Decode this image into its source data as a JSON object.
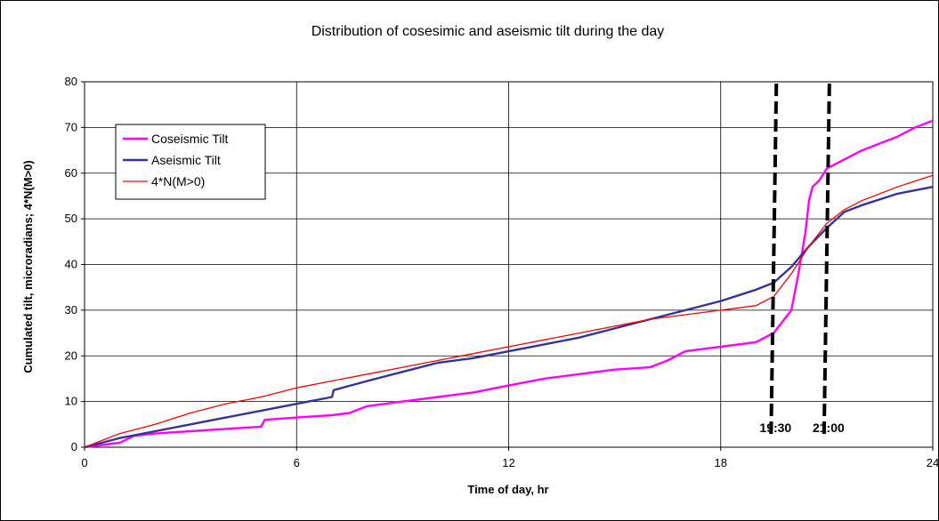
{
  "chart_data": {
    "type": "line",
    "title": "Distribution of cosesimic and aseismic tilt during the day",
    "xlabel": "Time of day, hr",
    "ylabel": "Cumulated tilt, microradians;  4*N(M>0)",
    "xlim": [
      0,
      24
    ],
    "ylim": [
      0,
      80
    ],
    "xticks": [
      "0",
      "6",
      "12",
      "18",
      "24"
    ],
    "yticks": [
      "0",
      "10",
      "20",
      "30",
      "40",
      "50",
      "60",
      "70",
      "80"
    ],
    "grid": true,
    "legend_position": "top-left",
    "series": [
      {
        "name": "Coseismic Tilt",
        "color": "#ff00ff",
        "x": [
          0,
          1,
          1.4,
          2,
          3,
          4,
          5,
          5.1,
          6,
          7,
          7.5,
          8,
          9,
          10,
          11,
          12,
          13,
          14,
          15,
          16,
          16.5,
          17,
          18,
          19,
          19.5,
          20,
          20.2,
          20.4,
          20.5,
          20.6,
          20.8,
          21,
          21.5,
          22,
          23,
          23.5,
          24
        ],
        "y": [
          0,
          1,
          2.5,
          3,
          3.5,
          4,
          4.5,
          6,
          6.5,
          7,
          7.5,
          9,
          10,
          11,
          12,
          13.5,
          15,
          16,
          17,
          17.5,
          19,
          21,
          22,
          23,
          25,
          30,
          38,
          47,
          54,
          57,
          58.5,
          61,
          63,
          65,
          68,
          70,
          71.5
        ]
      },
      {
        "name": "Aseismic Tilt",
        "color": "#333399",
        "x": [
          0,
          1,
          2,
          3,
          4,
          5,
          6,
          7,
          7.05,
          8,
          9,
          10,
          11,
          12,
          13,
          14,
          15,
          16,
          17,
          18,
          19,
          19.5,
          20,
          20.5,
          21,
          21.5,
          22,
          23,
          24
        ],
        "y": [
          0,
          2,
          3.5,
          5,
          6.5,
          8,
          9.5,
          11,
          12.5,
          14.5,
          16.5,
          18.5,
          19.5,
          21,
          22.5,
          24,
          26,
          28,
          30,
          32,
          34.5,
          36,
          39.5,
          44,
          48,
          51.5,
          53,
          55.5,
          57
        ]
      },
      {
        "name": "4*N(M>0)",
        "color": "#ff0000",
        "x": [
          0,
          1,
          2,
          3,
          4,
          5,
          6,
          7,
          8,
          9,
          10,
          11,
          12,
          13,
          14,
          15,
          16,
          17,
          18,
          19,
          19.5,
          20,
          20.5,
          21,
          21.5,
          22,
          23,
          24
        ],
        "y": [
          0,
          3,
          5,
          7.5,
          9.5,
          11,
          13,
          14.5,
          16,
          17.5,
          19,
          20.5,
          22,
          23.5,
          25,
          26.5,
          28,
          29,
          30,
          31,
          33,
          38,
          44,
          49,
          52,
          54,
          57,
          59.5
        ]
      }
    ],
    "annotations": [
      {
        "label": "19:30",
        "x": 19.5
      },
      {
        "label": "21:00",
        "x": 21
      }
    ]
  }
}
